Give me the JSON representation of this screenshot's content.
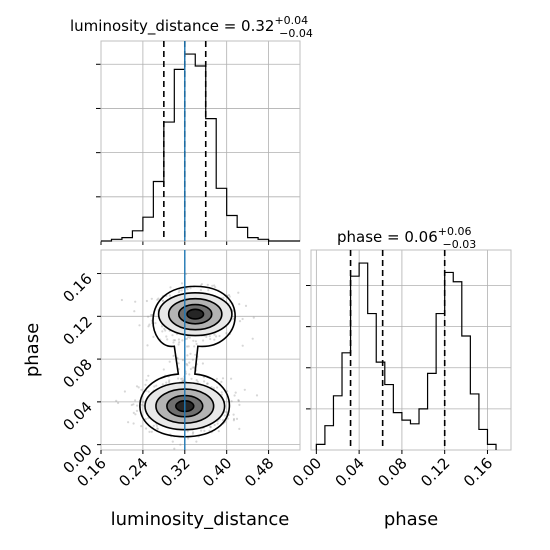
{
  "chart_data": {
    "type": "corner",
    "parameters": [
      "luminosity_distance",
      "phase"
    ],
    "truth": {
      "luminosity_distance": 0.32
    },
    "titles": {
      "luminosity_distance": {
        "text": "luminosity_distance = 0.32",
        "plus": "+0.04",
        "minus": "−0.04"
      },
      "phase": {
        "text": "phase = 0.06",
        "plus": "+0.06",
        "minus": "−0.03"
      }
    },
    "xlabels": {
      "luminosity_distance": "luminosity_distance",
      "phase": "phase"
    },
    "ylabel": "phase",
    "grid": true,
    "luminosity_distance_hist": {
      "xlim": [
        0.16,
        0.54
      ],
      "bin_edges": [
        0.16,
        0.18,
        0.2,
        0.22,
        0.24,
        0.26,
        0.28,
        0.3,
        0.32,
        0.34,
        0.36,
        0.38,
        0.4,
        0.42,
        0.44,
        0.46,
        0.48,
        0.5,
        0.52,
        0.54
      ],
      "counts": [
        0,
        1,
        2,
        6,
        14,
        35,
        70,
        101,
        110,
        103,
        72,
        31,
        15,
        8,
        2,
        1,
        0,
        0,
        0
      ],
      "quantiles": [
        0.28,
        0.32,
        0.36
      ]
    },
    "phase_hist": {
      "xlim": [
        -0.005,
        0.182
      ],
      "bin_edges": [
        0.0,
        0.008,
        0.016,
        0.024,
        0.032,
        0.04,
        0.048,
        0.056,
        0.064,
        0.072,
        0.08,
        0.088,
        0.096,
        0.104,
        0.112,
        0.12,
        0.128,
        0.136,
        0.144,
        0.152,
        0.16,
        0.168
      ],
      "counts": [
        3,
        13,
        29,
        52,
        93,
        100,
        73,
        47,
        35,
        20,
        16,
        14,
        22,
        41,
        73,
        95,
        90,
        61,
        30,
        11,
        3
      ],
      "quantiles": [
        0.032,
        0.062,
        0.12
      ]
    },
    "scatter_2d": {
      "xlim": [
        0.16,
        0.54
      ],
      "ylim": [
        -0.005,
        0.182
      ],
      "modes": [
        {
          "x": 0.34,
          "y": 0.122,
          "sx": 0.035,
          "sy": 0.01
        },
        {
          "x": 0.32,
          "y": 0.036,
          "sx": 0.038,
          "sy": 0.011
        }
      ]
    },
    "ticks": {
      "luminosity_distance": [
        "0.16",
        "0.24",
        "0.32",
        "0.40",
        "0.48"
      ],
      "luminosity_distance_values": [
        0.16,
        0.24,
        0.32,
        0.4,
        0.48
      ],
      "phase": [
        "0.00",
        "0.04",
        "0.08",
        "0.12",
        "0.16"
      ],
      "phase_values": [
        0.0,
        0.04,
        0.08,
        0.12,
        0.16
      ]
    }
  }
}
